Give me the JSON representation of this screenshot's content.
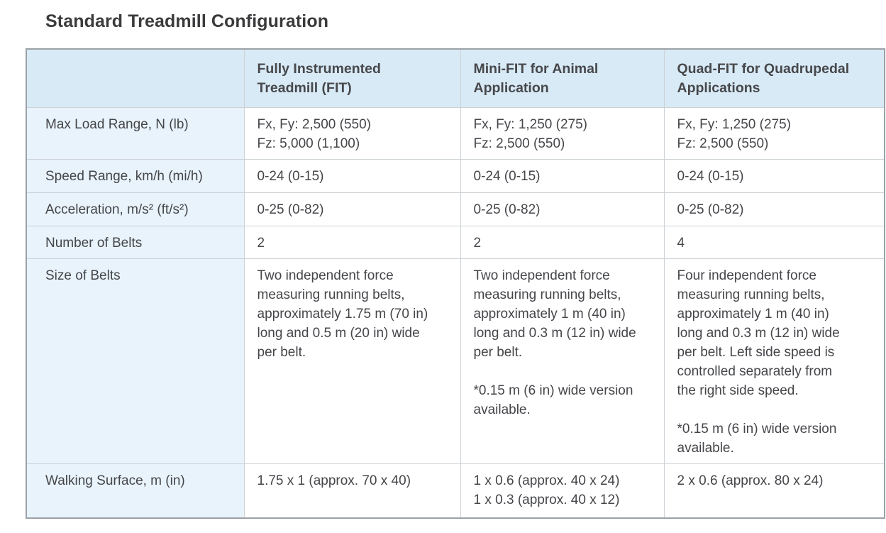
{
  "page": {
    "title": "Standard Treadmill Configuration"
  },
  "colors": {
    "title_text": "#3b3b3d",
    "header_bg": "#d8eaf6",
    "label_bg": "#e8f3fb",
    "cell_bg": "#ffffff",
    "grid_line": "#ccd1d5",
    "outer_border": "#9ca1a7",
    "body_text": "#45464a",
    "header_text": "#47484b"
  },
  "table": {
    "columns": [
      {
        "label": "",
        "lines": []
      },
      {
        "label": "Fully Instrumented Treadmill (FIT)",
        "lines": [
          "Fully Instrumented",
          "Treadmill (FIT)"
        ]
      },
      {
        "label": "Mini-FIT for Animal Application",
        "lines": [
          "Mini-FIT for Animal",
          "Application"
        ]
      },
      {
        "label": "Quad-FIT for Quadrupedal Applications",
        "lines": [
          "Quad-FIT for Quadrupedal",
          "Applications"
        ]
      }
    ],
    "rows": [
      {
        "label": "Max Load Range, N (lb)",
        "cells": [
          [
            "Fx, Fy: 2,500 (550)",
            "Fz: 5,000 (1,100)"
          ],
          [
            "Fx, Fy: 1,250 (275)",
            "Fz: 2,500 (550)"
          ],
          [
            "Fx, Fy: 1,250 (275)",
            "Fz: 2,500 (550)"
          ]
        ]
      },
      {
        "label": "Speed Range, km/h (mi/h)",
        "cells": [
          [
            "0-24 (0-15)"
          ],
          [
            "0-24 (0-15)"
          ],
          [
            "0-24 (0-15)"
          ]
        ]
      },
      {
        "label": "Acceleration, m/s² (ft/s²)",
        "cells": [
          [
            "0-25 (0-82)"
          ],
          [
            "0-25 (0-82)"
          ],
          [
            "0-25 (0-82)"
          ]
        ]
      },
      {
        "label": "Number of Belts",
        "cells": [
          [
            "2"
          ],
          [
            "2"
          ],
          [
            "4"
          ]
        ]
      },
      {
        "label": "Size of Belts",
        "cells": [
          [
            "Two independent force",
            "measuring running belts,",
            "approximately 1.75 m (70 in)",
            "long and 0.5 m (20 in) wide",
            "per belt."
          ],
          [
            "Two independent force",
            "measuring running belts,",
            "approximately 1 m (40 in)",
            "long and 0.3 m (12 in) wide",
            "per belt.",
            "",
            "*0.15 m (6 in) wide version",
            "available."
          ],
          [
            "Four independent force",
            "measuring running belts,",
            "approximately 1 m (40 in)",
            "long and 0.3 m (12 in) wide",
            "per belt. Left side speed is",
            "controlled separately from",
            "the right side speed.",
            "",
            "*0.15 m (6 in) wide version",
            "available."
          ]
        ]
      },
      {
        "label": "Walking Surface, m (in)",
        "cells": [
          [
            "1.75 x 1 (approx. 70 x 40)"
          ],
          [
            "1 x 0.6 (approx. 40 x 24)",
            "1 x 0.3 (approx. 40 x 12)"
          ],
          [
            "2 x 0.6 (approx. 80 x 24)"
          ]
        ]
      }
    ]
  }
}
